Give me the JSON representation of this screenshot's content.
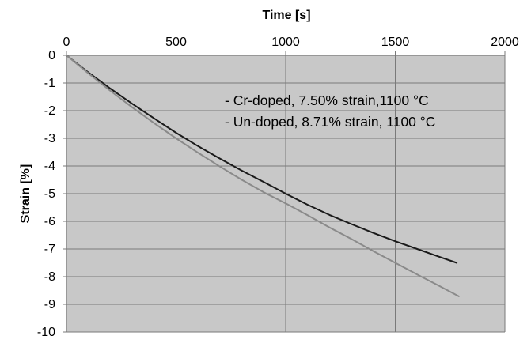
{
  "chart_data": {
    "type": "line",
    "title": "",
    "xlabel": "Time [s]",
    "ylabel": "Strain [%]",
    "xlim": [
      0,
      2000
    ],
    "ylim": [
      -10,
      0
    ],
    "x_ticks": [
      0,
      500,
      1000,
      1500,
      2000
    ],
    "y_ticks": [
      0,
      -1,
      -2,
      -3,
      -4,
      -5,
      -6,
      -7,
      -8,
      -9,
      -10
    ],
    "x_axis_position": "top",
    "grid": true,
    "legend": "top-right",
    "colors": {
      "plot_background": "#c8c8c8",
      "grid": "#7a7a7a",
      "axis": "#7a7a7a"
    },
    "series": [
      {
        "name": "Cr-doped, 7.50% strain,1100 °C",
        "legend_label": "- Cr-doped, 7.50% strain,1100 °C",
        "color": "#1a1a1a",
        "x": [
          0,
          100,
          200,
          300,
          400,
          500,
          600,
          700,
          800,
          900,
          1000,
          1100,
          1200,
          1300,
          1400,
          1500,
          1600,
          1700,
          1780
        ],
        "y": [
          0,
          -0.62,
          -1.2,
          -1.75,
          -2.28,
          -2.8,
          -3.28,
          -3.73,
          -4.17,
          -4.58,
          -5.0,
          -5.4,
          -5.77,
          -6.1,
          -6.42,
          -6.72,
          -7.0,
          -7.28,
          -7.5
        ]
      },
      {
        "name": "Un-doped, 8.71% strain, 1100 °C",
        "legend_label": "- Un-doped, 8.71% strain, 1100 °C",
        "color": "#8a8a8a",
        "x": [
          0,
          100,
          200,
          300,
          400,
          500,
          600,
          700,
          800,
          900,
          1000,
          1100,
          1200,
          1300,
          1400,
          1500,
          1600,
          1700,
          1790
        ],
        "y": [
          0,
          -0.65,
          -1.28,
          -1.88,
          -2.45,
          -3.0,
          -3.52,
          -4.02,
          -4.5,
          -4.95,
          -5.35,
          -5.78,
          -6.22,
          -6.64,
          -7.08,
          -7.5,
          -7.92,
          -8.33,
          -8.71
        ]
      }
    ]
  }
}
